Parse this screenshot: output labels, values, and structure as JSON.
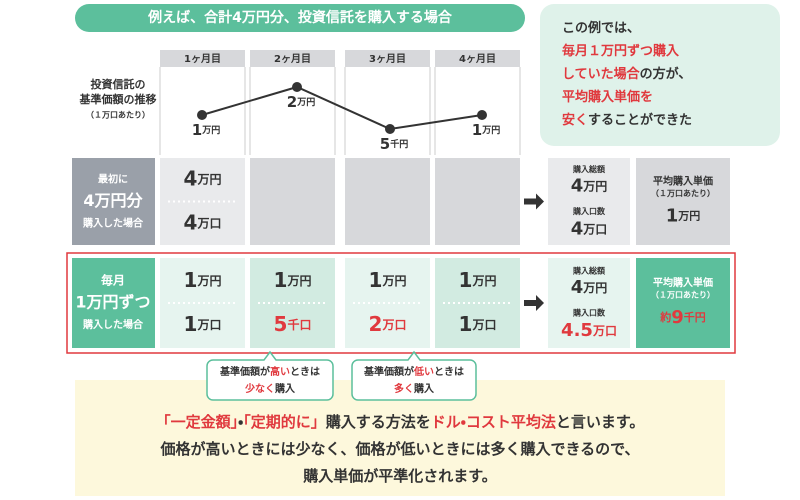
{
  "banner": "例えば、合計4万円分、投資信託を購入する場合",
  "summary": [
    [
      {
        "text": "この例では、"
      }
    ],
    [
      {
        "text": "毎月１万円ずつ購入",
        "color": "#e0393e"
      }
    ],
    [
      {
        "text": "していた場合",
        "color": "#e0393e"
      },
      {
        "text": "の方が、"
      }
    ],
    [
      {
        "text": "平均購入単価を",
        "color": "#e0393e"
      }
    ],
    [
      {
        "text": "安く",
        "color": "#e0393e"
      },
      {
        "text": "することができた"
      }
    ]
  ],
  "months": [
    "1ヶ月目",
    "2ヶ月目",
    "3ヶ月目",
    "4ヶ月目"
  ],
  "price_chart": {
    "label": [
      "投資信託の",
      "基準価額の推移",
      "（１万口あたり）"
    ],
    "labels": [
      {
        "num": "1",
        "unit": "万円"
      },
      {
        "num": "2",
        "unit": "万円"
      },
      {
        "num": "5",
        "unit": "千円"
      },
      {
        "num": "1",
        "unit": "万円"
      }
    ],
    "values": [
      10000,
      20000,
      5000,
      10000
    ]
  },
  "rows": [
    {
      "label": [
        "最初に",
        "4万円分",
        "購入した場合"
      ],
      "cells": [
        [
          {
            "num": "4",
            "unit": "万円"
          },
          {
            "num": "4",
            "unit": "万口"
          }
        ],
        [],
        [],
        []
      ],
      "total_label": "購入総額",
      "total": {
        "num": "4",
        "unit": "万円"
      },
      "units_label": "購入口数",
      "units": {
        "num": "4",
        "unit": "万口"
      },
      "avg_label": "平均購入単価",
      "avg_note": "（１万口あたり）",
      "avg": {
        "num": "1",
        "unit": "万円"
      }
    },
    {
      "label": [
        "毎月",
        "1万円ずつ",
        "購入した場合"
      ],
      "cells": [
        [
          {
            "num": "1",
            "unit": "万円"
          },
          {
            "num": "1",
            "unit": "万口"
          }
        ],
        [
          {
            "num": "1",
            "unit": "万円"
          },
          {
            "num": "5",
            "unit": "千口",
            "color": "#e0393e"
          }
        ],
        [
          {
            "num": "1",
            "unit": "万円"
          },
          {
            "num": "2",
            "unit": "万口",
            "color": "#e0393e"
          }
        ],
        [
          {
            "num": "1",
            "unit": "万円"
          },
          {
            "num": "1",
            "unit": "万口"
          }
        ]
      ],
      "total_label": "購入総額",
      "total": {
        "num": "4",
        "unit": "万円"
      },
      "units_label": "購入口数",
      "units": {
        "num": "4.5",
        "unit": "万口",
        "color": "#e0393e"
      },
      "avg_label": "平均購入単価",
      "avg_note": "（１万口あたり）",
      "avg": {
        "prefix": "約",
        "num": "9",
        "unit": "千円",
        "color": "#e0393e"
      }
    }
  ],
  "callouts": [
    [
      [
        {
          "text": "基準価額が"
        },
        {
          "text": "高い",
          "color": "#e0393e"
        },
        {
          "text": "ときは"
        }
      ],
      [
        {
          "text": "少なく",
          "color": "#e0393e"
        },
        {
          "text": "購入"
        }
      ]
    ],
    [
      [
        {
          "text": "基準価額が"
        },
        {
          "text": "低い",
          "color": "#e0393e"
        },
        {
          "text": "ときは"
        }
      ],
      [
        {
          "text": "多く",
          "color": "#e0393e"
        },
        {
          "text": "購入"
        }
      ]
    ]
  ],
  "footer": [
    [
      {
        "text": "「一定金額」",
        "color": "#e0393e"
      },
      {
        "text": "・"
      },
      {
        "text": "「定期的に」",
        "color": "#e0393e"
      },
      {
        "text": "購入する方法を"
      },
      {
        "text": "ドル・コスト平均法",
        "color": "#e0393e"
      },
      {
        "text": "と言います。"
      }
    ],
    [
      {
        "text": "価格が高いときには少なく、価格が低いときには多く購入できるので、"
      }
    ],
    [
      {
        "text": "購入単価が平準化されます。"
      }
    ]
  ]
}
